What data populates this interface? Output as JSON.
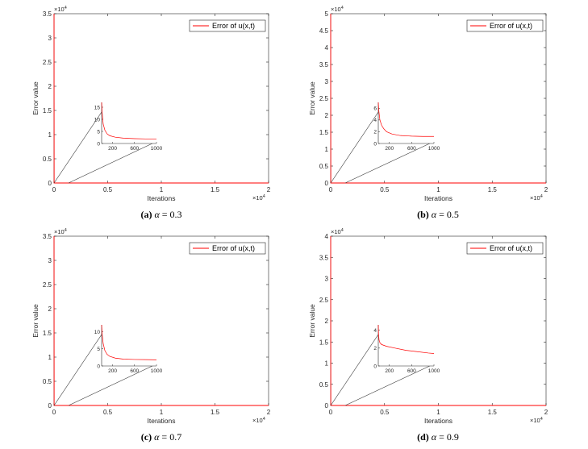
{
  "chart_data": [
    {
      "type": "line",
      "caption": {
        "tag": "(a)",
        "symbol": "α",
        "eq": "= 0.3"
      },
      "xlabel": "Iterations",
      "ylabel": "Error value",
      "xlim": [
        0,
        2
      ],
      "ylim": [
        0,
        3.5
      ],
      "xticks": [
        "0",
        "0.5",
        "1",
        "1.5",
        "2"
      ],
      "yticks": [
        "0",
        "0.5",
        "1",
        "1.5",
        "2",
        "2.5",
        "3",
        "3.5"
      ],
      "y_exponent": "4",
      "x_exponent": "4",
      "legend": "Error of u(x,t)",
      "series": [
        {
          "name": "Error of u(x,t)",
          "x": [
            0,
            0.001,
            2
          ],
          "y": [
            3.5,
            0,
            0
          ]
        }
      ],
      "inset": {
        "xlim": [
          1,
          1000
        ],
        "ylim": [
          0,
          17
        ],
        "xticks": [
          "200",
          "600",
          "1000"
        ],
        "yticks": [
          "0",
          "5",
          "10",
          "15"
        ],
        "curve": [
          [
            1,
            17
          ],
          [
            10,
            13
          ],
          [
            30,
            8
          ],
          [
            60,
            5.5
          ],
          [
            100,
            4
          ],
          [
            150,
            3.2
          ],
          [
            250,
            2.6
          ],
          [
            400,
            2.2
          ],
          [
            600,
            2.0
          ],
          [
            800,
            1.9
          ],
          [
            1000,
            1.85
          ]
        ]
      }
    },
    {
      "type": "line",
      "caption": {
        "tag": "(b)",
        "symbol": "α",
        "eq": "= 0.5"
      },
      "xlabel": "Iterations",
      "ylabel": "Error value",
      "xlim": [
        0,
        2
      ],
      "ylim": [
        0,
        5
      ],
      "xticks": [
        "0",
        "0.5",
        "1",
        "1.5",
        "2"
      ],
      "yticks": [
        "0",
        "0.5",
        "1",
        "1.5",
        "2",
        "2.5",
        "3",
        "3.5",
        "4",
        "4.5",
        "5"
      ],
      "y_exponent": "4",
      "x_exponent": "4",
      "legend": "Error of u(x,t)",
      "series": [
        {
          "name": "Error of u(x,t)",
          "x": [
            0,
            0.001,
            2
          ],
          "y": [
            5,
            0,
            0
          ]
        }
      ],
      "inset": {
        "xlim": [
          1,
          1000
        ],
        "ylim": [
          0,
          7
        ],
        "xticks": [
          "200",
          "600",
          "1000"
        ],
        "yticks": [
          "0",
          "2",
          "4",
          "6"
        ],
        "curve": [
          [
            1,
            7
          ],
          [
            10,
            5.6
          ],
          [
            30,
            4.0
          ],
          [
            60,
            3.1
          ],
          [
            100,
            2.5
          ],
          [
            150,
            2.0
          ],
          [
            250,
            1.6
          ],
          [
            400,
            1.35
          ],
          [
            600,
            1.25
          ],
          [
            800,
            1.2
          ],
          [
            1000,
            1.2
          ]
        ]
      }
    },
    {
      "type": "line",
      "caption": {
        "tag": "(c)",
        "symbol": "α",
        "eq": "= 0.7"
      },
      "xlabel": "Iterations",
      "ylabel": "Error value",
      "xlim": [
        0,
        2
      ],
      "ylim": [
        0,
        3.5
      ],
      "xticks": [
        "0",
        "0.5",
        "1",
        "1.5",
        "2"
      ],
      "yticks": [
        "0",
        "0.5",
        "1",
        "1.5",
        "2",
        "2.5",
        "3",
        "3.5"
      ],
      "y_exponent": "4",
      "x_exponent": "4",
      "legend": "Error of u(x,t)",
      "series": [
        {
          "name": "Error of u(x,t)",
          "x": [
            0,
            0.001,
            2
          ],
          "y": [
            3.5,
            0,
            0
          ]
        }
      ],
      "inset": {
        "xlim": [
          1,
          1000
        ],
        "ylim": [
          0,
          12
        ],
        "xticks": [
          "200",
          "600",
          "1000"
        ],
        "yticks": [
          "0",
          "5",
          "10"
        ],
        "curve": [
          [
            1,
            12
          ],
          [
            10,
            9.5
          ],
          [
            30,
            6.5
          ],
          [
            60,
            4.5
          ],
          [
            100,
            3.4
          ],
          [
            150,
            2.8
          ],
          [
            250,
            2.3
          ],
          [
            400,
            2.0
          ],
          [
            600,
            1.9
          ],
          [
            800,
            1.85
          ],
          [
            1000,
            1.8
          ]
        ]
      }
    },
    {
      "type": "line",
      "caption": {
        "tag": "(d)",
        "symbol": "α",
        "eq": "= 0.9"
      },
      "xlabel": "Iterations",
      "ylabel": "Error value",
      "xlim": [
        0,
        2
      ],
      "ylim": [
        0,
        4
      ],
      "xticks": [
        "0",
        "0.5",
        "1",
        "1.5",
        "2"
      ],
      "yticks": [
        "0",
        "0.5",
        "1",
        "1.5",
        "2",
        "2.5",
        "3",
        "3.5",
        "4"
      ],
      "y_exponent": "4",
      "x_exponent": "4",
      "legend": "Error of u(x,t)",
      "series": [
        {
          "name": "Error of u(x,t)",
          "x": [
            0,
            0.001,
            2
          ],
          "y": [
            4,
            0,
            0
          ]
        }
      ],
      "inset": {
        "xlim": [
          1,
          1000
        ],
        "ylim": [
          0,
          4.6
        ],
        "xticks": [
          "200",
          "600",
          "1000"
        ],
        "yticks": [
          "0",
          "2",
          "4"
        ],
        "curve": [
          [
            1,
            4.6
          ],
          [
            5,
            3.6
          ],
          [
            15,
            2.9
          ],
          [
            30,
            2.6
          ],
          [
            60,
            2.4
          ],
          [
            150,
            2.2
          ],
          [
            300,
            2.0
          ],
          [
            500,
            1.75
          ],
          [
            700,
            1.6
          ],
          [
            900,
            1.45
          ],
          [
            1000,
            1.4
          ]
        ]
      }
    }
  ],
  "colors": {
    "series": "#ff0000",
    "axis": "#262626",
    "zoom_lines": "#333333"
  }
}
